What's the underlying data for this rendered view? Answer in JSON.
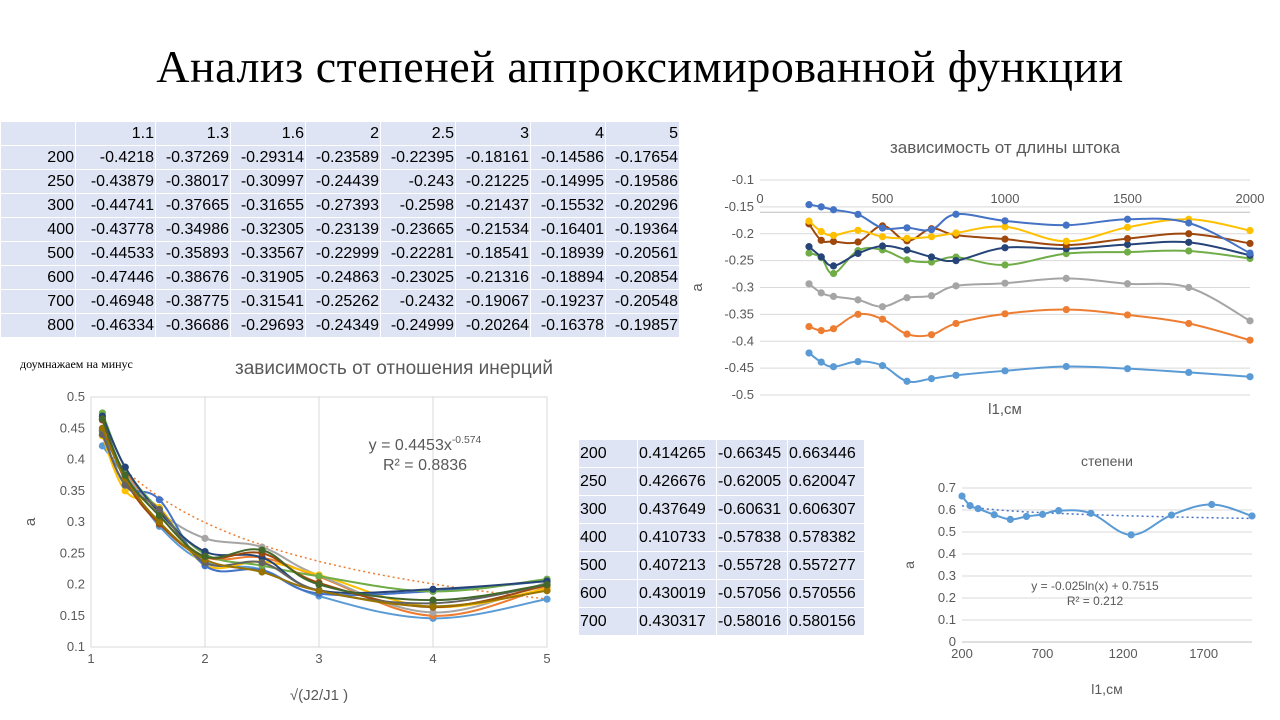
{
  "slide": {
    "title": "Анализ степеней аппроксимированной функции"
  },
  "note": "доумнажаем на минус",
  "top_table": {
    "header": [
      "",
      "1.1",
      "1.3",
      "1.6",
      "2",
      "2.5",
      "3",
      "4",
      "5"
    ],
    "rows": [
      [
        "200",
        "-0.4218",
        "-0.37269",
        "-0.29314",
        "-0.23589",
        "-0.22395",
        "-0.18161",
        "-0.14586",
        "-0.17654"
      ],
      [
        "250",
        "-0.43879",
        "-0.38017",
        "-0.30997",
        "-0.24439",
        "-0.243",
        "-0.21225",
        "-0.14995",
        "-0.19586"
      ],
      [
        "300",
        "-0.44741",
        "-0.37665",
        "-0.31655",
        "-0.27393",
        "-0.2598",
        "-0.21437",
        "-0.15532",
        "-0.20296"
      ],
      [
        "400",
        "-0.43778",
        "-0.34986",
        "-0.32305",
        "-0.23139",
        "-0.23665",
        "-0.21534",
        "-0.16401",
        "-0.19364"
      ],
      [
        "500",
        "-0.44533",
        "-0.35893",
        "-0.33567",
        "-0.22999",
        "-0.22281",
        "-0.18541",
        "-0.18939",
        "-0.20561"
      ],
      [
        "600",
        "-0.47446",
        "-0.38676",
        "-0.31905",
        "-0.24863",
        "-0.23025",
        "-0.21316",
        "-0.18894",
        "-0.20854"
      ],
      [
        "700",
        "-0.46948",
        "-0.38775",
        "-0.31541",
        "-0.25262",
        "-0.2432",
        "-0.19067",
        "-0.19237",
        "-0.20548"
      ],
      [
        "800",
        "-0.46334",
        "-0.36686",
        "-0.29693",
        "-0.24349",
        "-0.24999",
        "-0.20264",
        "-0.16378",
        "-0.19857"
      ]
    ]
  },
  "power_table": {
    "rows": [
      [
        "200",
        "0.414265",
        "-0.66345",
        "0.663446"
      ],
      [
        "250",
        "0.426676",
        "-0.62005",
        "0.620047"
      ],
      [
        "300",
        "0.437649",
        "-0.60631",
        "0.606307"
      ],
      [
        "400",
        "0.410733",
        "-0.57838",
        "0.578382"
      ],
      [
        "500",
        "0.407213",
        "-0.55728",
        "0.557277"
      ],
      [
        "600",
        "0.430019",
        "-0.57056",
        "0.570556"
      ],
      [
        "700",
        "0.430317",
        "-0.58016",
        "0.580156"
      ]
    ]
  },
  "chart_data": [
    {
      "type": "line",
      "title": "зависимость от отношения инерций",
      "xlabel": "√(J2/J1 )",
      "ylabel": "a",
      "xlim": [
        1,
        5
      ],
      "ylim": [
        0.1,
        0.5
      ],
      "xticks": [
        "1",
        "2",
        "3",
        "4",
        "5"
      ],
      "yticks": [
        "0.1",
        "0.15",
        "0.2",
        "0.25",
        "0.3",
        "0.35",
        "0.4",
        "0.45",
        "0.5"
      ],
      "grid": "vertical",
      "trendline": {
        "type": "power",
        "a": 0.4453,
        "b": -0.574,
        "color": "#ed7d31"
      },
      "equation": "y = 0.4453x",
      "equation_exp": "-0.574",
      "r2": "R² = 0.8836",
      "x": [
        1.1,
        1.3,
        1.6,
        2,
        2.5,
        3,
        4,
        5
      ],
      "series": [
        {
          "color": "#5b9bd5",
          "values": [
            0.4218,
            0.37269,
            0.29314,
            0.23589,
            0.22395,
            0.18161,
            0.14586,
            0.17654
          ]
        },
        {
          "color": "#ed7d31",
          "values": [
            0.43879,
            0.38017,
            0.30997,
            0.24439,
            0.243,
            0.21225,
            0.14995,
            0.19586
          ]
        },
        {
          "color": "#a5a5a5",
          "values": [
            0.44741,
            0.37665,
            0.31655,
            0.27393,
            0.2598,
            0.21437,
            0.15532,
            0.20296
          ]
        },
        {
          "color": "#ffc000",
          "values": [
            0.43778,
            0.34986,
            0.32305,
            0.23139,
            0.23665,
            0.21534,
            0.16401,
            0.19364
          ]
        },
        {
          "color": "#4472c4",
          "values": [
            0.44533,
            0.35893,
            0.33567,
            0.22999,
            0.22281,
            0.18541,
            0.18939,
            0.20561
          ]
        },
        {
          "color": "#70ad47",
          "values": [
            0.47446,
            0.38676,
            0.31905,
            0.24863,
            0.23025,
            0.21316,
            0.18894,
            0.20854
          ]
        },
        {
          "color": "#264478",
          "values": [
            0.46948,
            0.38775,
            0.31541,
            0.25262,
            0.2432,
            0.19067,
            0.19237,
            0.20548
          ]
        },
        {
          "color": "#9e480e",
          "values": [
            0.46334,
            0.36686,
            0.29693,
            0.24349,
            0.24999,
            0.20264,
            0.16378,
            0.19857
          ]
        },
        {
          "color": "#636363",
          "values": [
            0.44,
            0.36,
            0.32,
            0.235,
            0.235,
            0.19,
            0.17,
            0.2
          ]
        },
        {
          "color": "#997300",
          "values": [
            0.45,
            0.37,
            0.3,
            0.24,
            0.22,
            0.19,
            0.165,
            0.19
          ]
        },
        {
          "color": "#43682b",
          "values": [
            0.465,
            0.375,
            0.31,
            0.245,
            0.255,
            0.2,
            0.175,
            0.2
          ]
        }
      ]
    },
    {
      "type": "line",
      "title": "зависимость от длины штока",
      "xlabel": "l1,см",
      "ylabel": "a",
      "xlim": [
        0,
        2000
      ],
      "ylim": [
        -0.5,
        -0.1
      ],
      "xticks": [
        "0",
        "500",
        "1000",
        "1500",
        "2000"
      ],
      "yticks": [
        "-0.1",
        "-0.15",
        "-0.2",
        "-0.25",
        "-0.3",
        "-0.35",
        "-0.4",
        "-0.45",
        "-0.5"
      ],
      "grid": "horizontal",
      "x": [
        200,
        250,
        300,
        400,
        500,
        600,
        700,
        800,
        1000,
        1250,
        1500,
        1750,
        2000
      ],
      "series": [
        {
          "color": "#5b9bd5",
          "values": [
            -0.4218,
            -0.43879,
            -0.44741,
            -0.43778,
            -0.44533,
            -0.47446,
            -0.46948,
            -0.46334,
            -0.455,
            -0.447,
            -0.451,
            -0.458,
            -0.466
          ]
        },
        {
          "color": "#ed7d31",
          "values": [
            -0.37269,
            -0.38017,
            -0.37665,
            -0.34986,
            -0.35893,
            -0.38676,
            -0.38775,
            -0.36686,
            -0.349,
            -0.341,
            -0.351,
            -0.367,
            -0.398
          ]
        },
        {
          "color": "#a5a5a5",
          "values": [
            -0.29314,
            -0.30997,
            -0.31655,
            -0.32305,
            -0.33567,
            -0.31905,
            -0.31541,
            -0.29693,
            -0.292,
            -0.283,
            -0.293,
            -0.3,
            -0.362
          ]
        },
        {
          "color": "#70ad47",
          "values": [
            -0.23589,
            -0.24439,
            -0.27393,
            -0.23139,
            -0.22999,
            -0.24863,
            -0.25262,
            -0.24349,
            -0.258,
            -0.237,
            -0.234,
            -0.232,
            -0.246
          ]
        },
        {
          "color": "#264478",
          "values": [
            -0.22395,
            -0.243,
            -0.2598,
            -0.23665,
            -0.22281,
            -0.23025,
            -0.2432,
            -0.24999,
            -0.226,
            -0.228,
            -0.22,
            -0.216,
            -0.24
          ]
        },
        {
          "color": "#9e480e",
          "values": [
            -0.18161,
            -0.21225,
            -0.21437,
            -0.21534,
            -0.18541,
            -0.21316,
            -0.19067,
            -0.20264,
            -0.21,
            -0.221,
            -0.209,
            -0.2,
            -0.218
          ]
        },
        {
          "color": "#ffc000",
          "values": [
            -0.17654,
            -0.19586,
            -0.20296,
            -0.19364,
            -0.20561,
            -0.20854,
            -0.20548,
            -0.19857,
            -0.187,
            -0.214,
            -0.188,
            -0.173,
            -0.194
          ]
        },
        {
          "color": "#4472c4",
          "values": [
            -0.14586,
            -0.14995,
            -0.15532,
            -0.16401,
            -0.18939,
            -0.18894,
            -0.19237,
            -0.16378,
            -0.176,
            -0.184,
            -0.173,
            -0.18,
            -0.236
          ]
        }
      ]
    },
    {
      "type": "line",
      "title": "степени",
      "xlabel": "l1,см",
      "ylabel": "a",
      "xlim": [
        200,
        2000
      ],
      "ylim": [
        0,
        0.7
      ],
      "xticks": [
        "200",
        "700",
        "1200",
        "1700"
      ],
      "yticks": [
        "0",
        "0.1",
        "0.2",
        "0.3",
        "0.4",
        "0.5",
        "0.6",
        "0.7"
      ],
      "grid": "horizontal",
      "trendline": {
        "type": "log",
        "a": -0.025,
        "b": 0.7515,
        "color": "#4472c4"
      },
      "equation": "y = -0.025ln(x) + 0.7515",
      "r2": "R² = 0.212",
      "x": [
        200,
        250,
        300,
        400,
        500,
        600,
        700,
        800,
        1000,
        1250,
        1500,
        1750,
        2000
      ],
      "series": [
        {
          "color": "#5b9bd5",
          "values": [
            0.663446,
            0.620047,
            0.606307,
            0.578382,
            0.557277,
            0.570556,
            0.580156,
            0.597,
            0.585,
            0.487,
            0.577,
            0.625,
            0.573
          ]
        }
      ]
    }
  ]
}
